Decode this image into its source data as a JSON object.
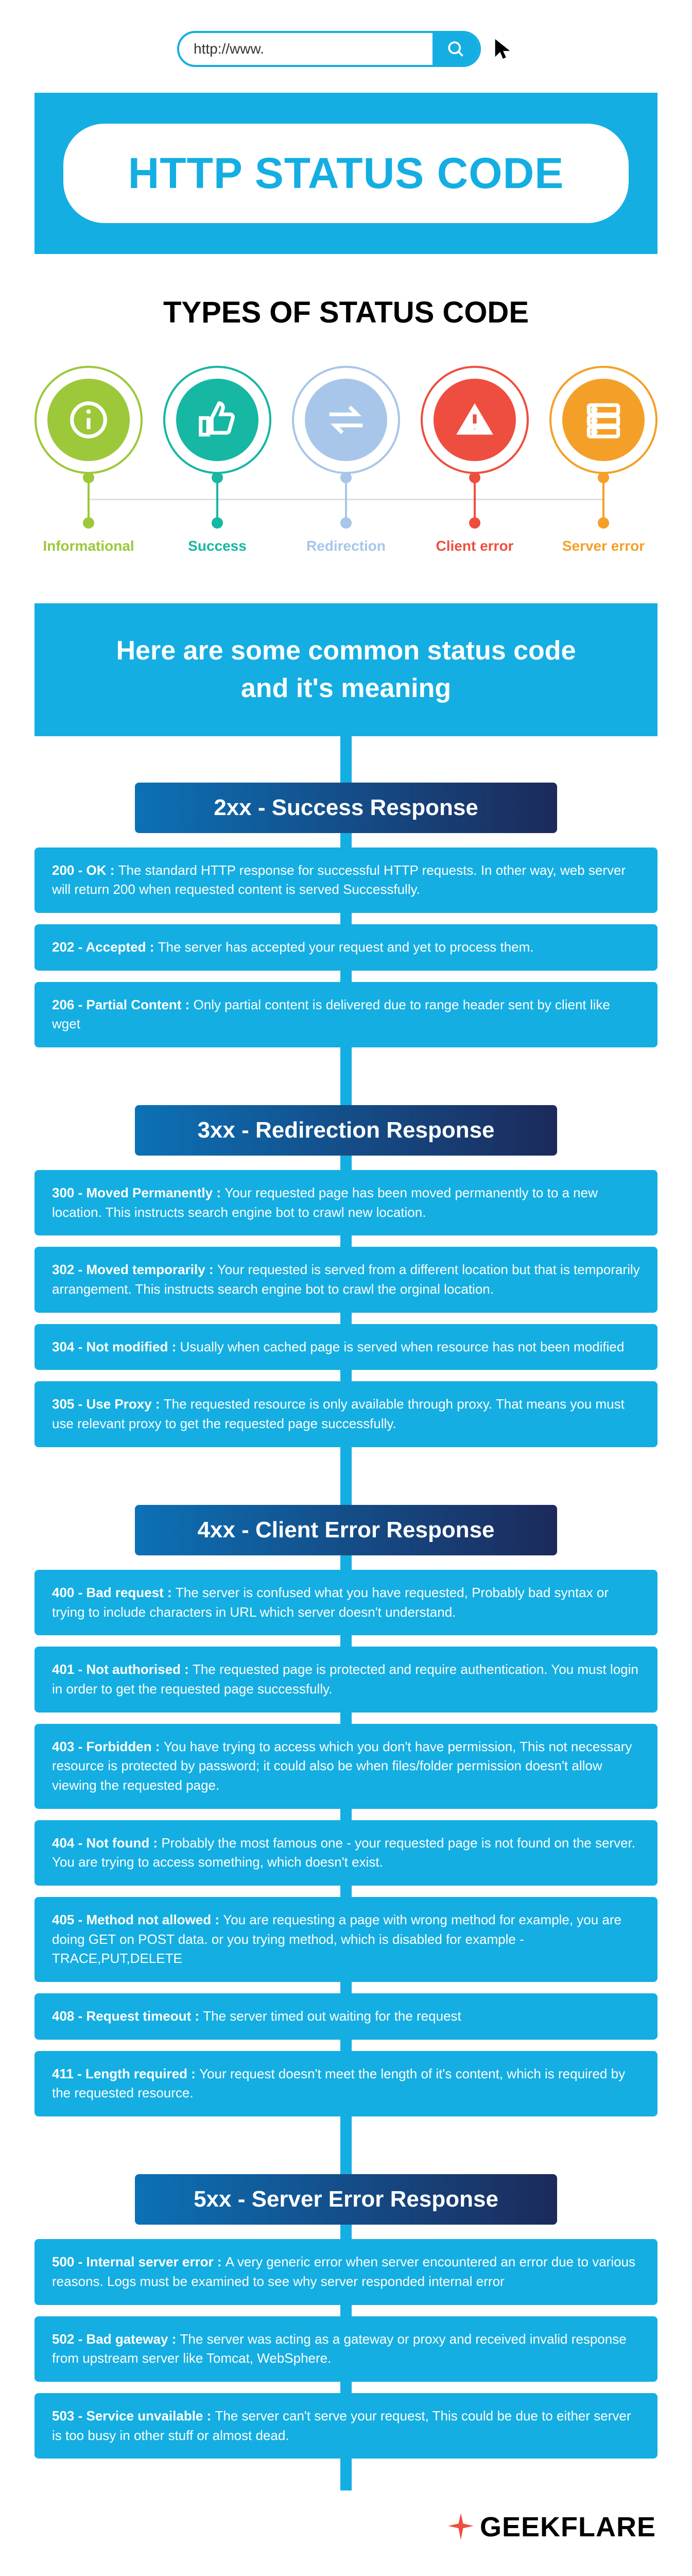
{
  "search": {
    "placeholder": "http://www."
  },
  "title": "HTTP STATUS CODE",
  "title_color": "#14aee2",
  "subtitle": "TYPES OF STATUS CODE",
  "types": [
    {
      "label": "Informational",
      "color": "#9cc83a",
      "icon": "info"
    },
    {
      "label": "Success",
      "color": "#16b7a3",
      "icon": "thumbs"
    },
    {
      "label": "Redirection",
      "color": "#a8c6e9",
      "icon": "swap"
    },
    {
      "label": "Client error",
      "color": "#ee4e3f",
      "icon": "alert"
    },
    {
      "label": "Server error",
      "color": "#f4a028",
      "icon": "server"
    }
  ],
  "common_banner": {
    "line1": "Here are some common status code",
    "line2": "and it's meaning"
  },
  "sections": [
    {
      "header": "2xx - Success Response",
      "codes": [
        {
          "title": "200 - OK :",
          "body": "The standard HTTP response for successful HTTP requests. In other way, web server will return 200 when requested content is served Successfully."
        },
        {
          "title": "202 - Accepted :",
          "body": "The server has accepted your request and yet to process them."
        },
        {
          "title": "206 - Partial Content :",
          "body": "Only partial content is delivered due to range header sent by client like wget"
        }
      ]
    },
    {
      "header": "3xx - Redirection Response",
      "codes": [
        {
          "title": "300 - Moved Permanently :",
          "body": "Your requested page has been moved permanently to to a new location. This instructs search engine bot to crawl new location."
        },
        {
          "title": "302 - Moved temporarily :",
          "body": "Your requested is served from a different location but that is temporarily arrangement. This instructs search engine bot to crawl the orginal location."
        },
        {
          "title": "304 - Not modified :",
          "body": "Usually when cached page is served when resource has not been modified"
        },
        {
          "title": "305 - Use Proxy :",
          "body": "The requested resource is only available through proxy. That means you must use relevant proxy to get the requested page successfully."
        }
      ]
    },
    {
      "header": "4xx - Client Error Response",
      "codes": [
        {
          "title": "400 - Bad request :",
          "body": "The server is confused what you have requested, Probably bad syntax or trying to include characters in URL which server doesn't understand."
        },
        {
          "title": "401 - Not authorised :",
          "body": "The requested page is protected and require authentication. You must login in order to get the requested page successfully."
        },
        {
          "title": "403 - Forbidden :",
          "body": "You have trying to access which you don't have permission, This not necessary resource is protected by password; it could also be when files/folder permission doesn't allow viewing the requested page."
        },
        {
          "title": "404 - Not found :",
          "body": "Probably the most famous one - your requested page is  not found on the server. You are trying to access something, which doesn't exist."
        },
        {
          "title": "405 - Method not allowed :",
          "body": "You are requesting a page with wrong method for example, you are doing GET on POST data. or you trying method, which is disabled for example - TRACE,PUT,DELETE"
        },
        {
          "title": "408 - Request timeout :",
          "body": "The server timed out waiting for the request"
        },
        {
          "title": "411 - Length required  :",
          "body": "Your request doesn't meet the length of it's content, which is required by the requested resource."
        }
      ]
    },
    {
      "header": "5xx - Server Error Response",
      "codes": [
        {
          "title": "500 - Internal server error  :",
          "body": "A very generic error when server encountered an error due to various reasons. Logs must be examined to see why server responded internal error"
        },
        {
          "title": "502 - Bad gateway  :",
          "body": "The server was acting as a gateway or proxy and received invalid response from upstream server like Tomcat, WebSphere."
        },
        {
          "title": "503 - Service unvailable  :",
          "body": "The server can't serve your request, This could be due to either server is too busy in other stuff or almost dead."
        }
      ]
    }
  ],
  "footer": {
    "brand": "GEEKFLARE",
    "spark_color": "#ee4e3f"
  },
  "colors": {
    "primary": "#14aee2",
    "header_grad_from": "#0c71b6",
    "header_grad_to": "#1c2a5b"
  }
}
